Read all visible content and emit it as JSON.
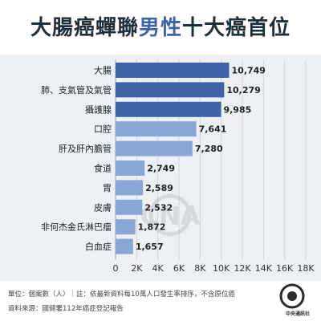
{
  "title": {
    "part1": "大腸癌蟬聯",
    "highlight": "男性",
    "part2": "十大癌首位"
  },
  "chart_data": {
    "type": "bar",
    "orientation": "horizontal",
    "categories": [
      "大腸",
      "肺、支氣管及氣管",
      "攝護腺",
      "口腔",
      "肝及肝內膽管",
      "食道",
      "胃",
      "皮膚",
      "非何杰金氏淋巴瘤",
      "白血症"
    ],
    "values": [
      10749,
      10279,
      9985,
      7641,
      7280,
      2749,
      2589,
      2532,
      1872,
      1657
    ],
    "value_labels": [
      "10,749",
      "10,279",
      "9,985",
      "7,641",
      "7,280",
      "2,749",
      "2,589",
      "2,532",
      "1,872",
      "1,657"
    ],
    "xticks": [
      "0",
      "2K",
      "4K",
      "6K",
      "8K",
      "10K",
      "12K",
      "14K",
      "16K",
      "18K"
    ],
    "xlim": [
      0,
      18000
    ],
    "grid": true,
    "colors": {
      "dark": "#3f63a8",
      "light": "#8aa6d6"
    },
    "dark_count": 3
  },
  "footer": {
    "line1": "單位：個案數（人）｜註：依最新資料每10萬人口發生率排序，不含原位癌",
    "line2": "資料來源：國健署112年癌症登記報告"
  },
  "logo": {
    "text": "CNA",
    "caption": "中央通訊社"
  }
}
